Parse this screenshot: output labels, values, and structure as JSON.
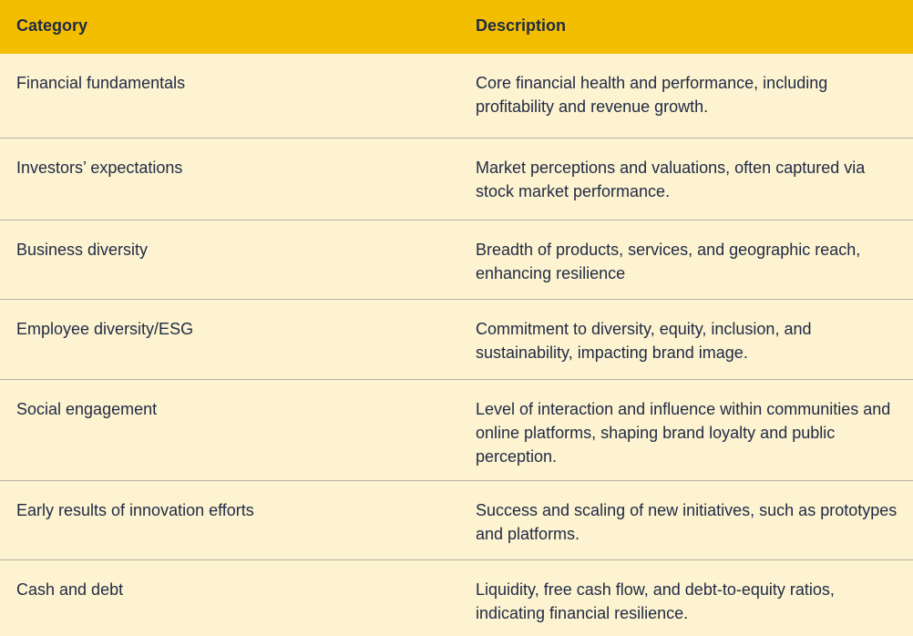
{
  "header": {
    "category": "Category",
    "description": "Description"
  },
  "rows": [
    {
      "category": "Financial fundamentals",
      "description": "Core financial health and performance, including profitability and revenue growth."
    },
    {
      "category": "Investors’ expectations",
      "description": "Market perceptions and valuations, often captured via stock market performance."
    },
    {
      "category": "Business diversity",
      "description": "Breadth of products, services, and geographic reach, enhancing resilience"
    },
    {
      "category": "Employee diversity/ESG",
      "description": "Commitment to diversity, equity, inclusion, and sustainability, impacting brand image."
    },
    {
      "category": "Social engagement",
      "description": "Level of interaction and influence within communities and online platforms, shaping brand loyalty and public perception."
    },
    {
      "category": "Early results of innovation efforts",
      "description": "Success and scaling of new initiatives, such as prototypes and platforms."
    },
    {
      "category": "Cash and debt",
      "description": "Liquidity, free cash flow, and debt-to-equity ratios, indicating financial resilience."
    }
  ],
  "colors": {
    "header_bg": "#f3be00",
    "body_bg": "#fdf3d0",
    "text": "#1f2a44",
    "divider": "#b6b1a4"
  }
}
